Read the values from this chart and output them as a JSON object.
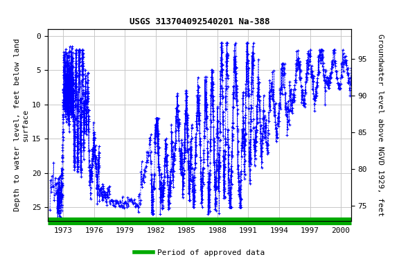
{
  "title": "USGS 313704092540201 Na-388",
  "ylabel_left": "Depth to water level, feet below land\nsurface",
  "ylabel_right": "Groundwater level above NGVD 1929, feet",
  "ylim_left": [
    27,
    -1
  ],
  "ylim_right": [
    73,
    99
  ],
  "xlim": [
    1971.5,
    2001.0
  ],
  "yticks_left": [
    0,
    5,
    10,
    15,
    20,
    25
  ],
  "yticks_right": [
    75,
    80,
    85,
    90,
    95
  ],
  "xticks": [
    1973,
    1976,
    1979,
    1982,
    1985,
    1988,
    1991,
    1994,
    1997,
    2000
  ],
  "data_color": "#0000FF",
  "legend_color": "#00AA00",
  "legend_label": "Period of approved data",
  "background_color": "#ffffff",
  "grid_color": "#c8c8c8",
  "title_fontsize": 9,
  "axis_label_fontsize": 8,
  "tick_fontsize": 8
}
